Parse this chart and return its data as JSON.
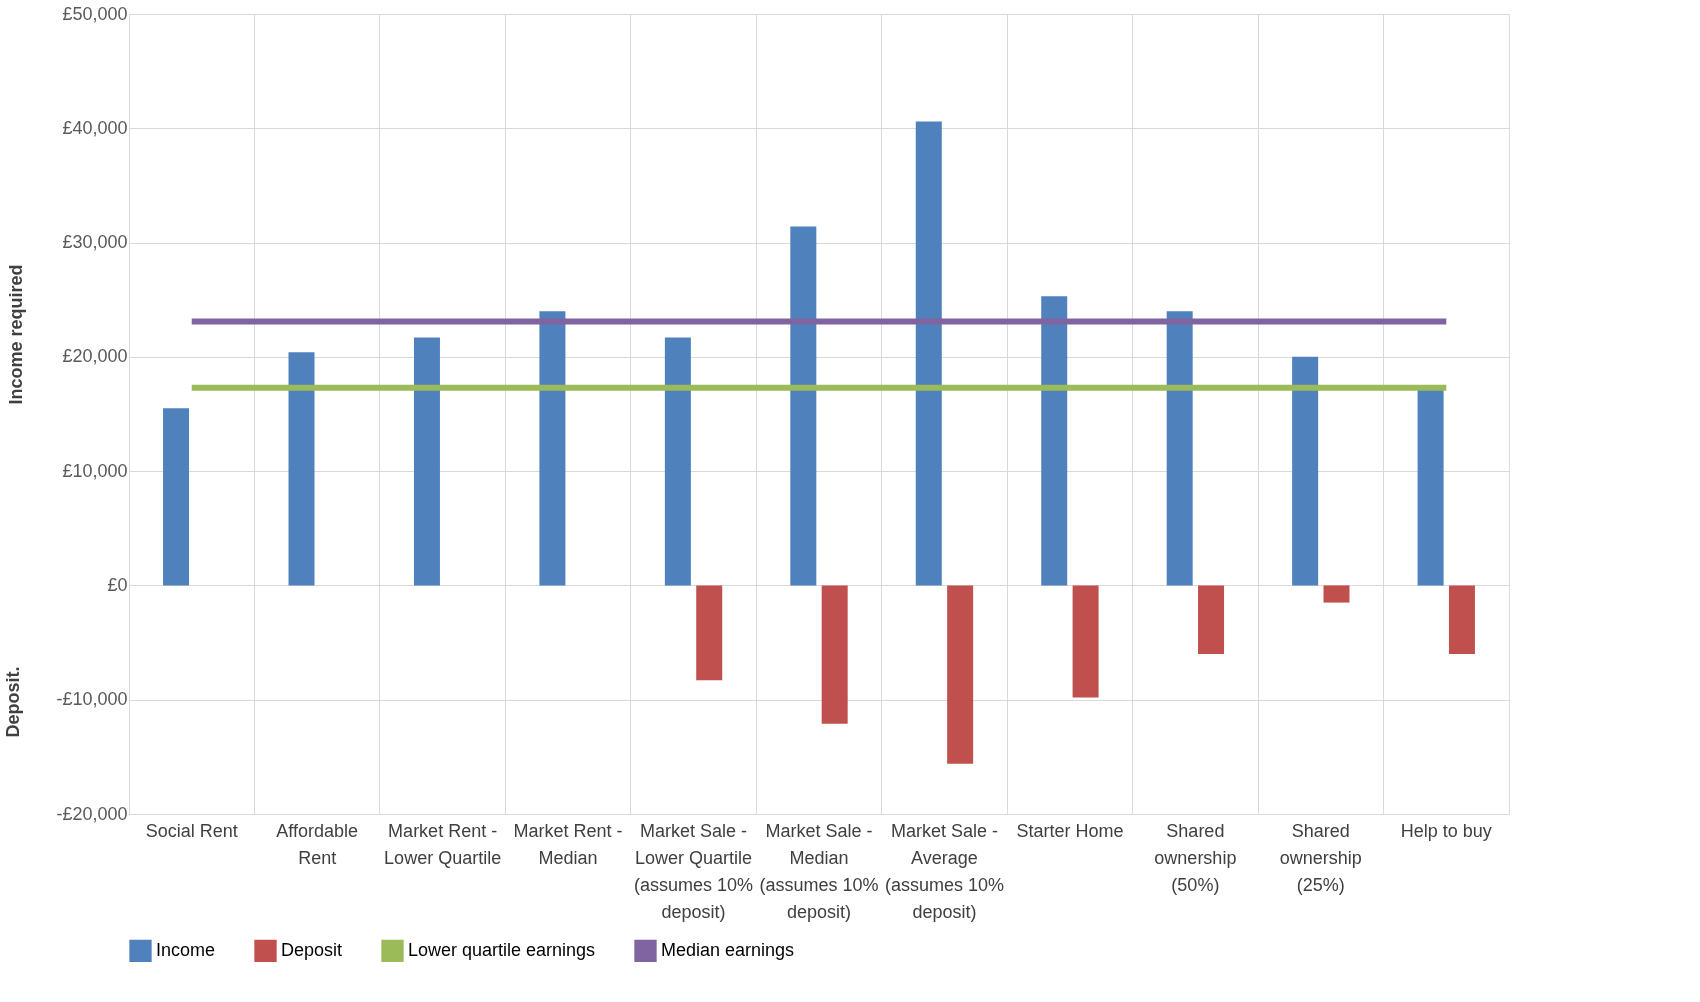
{
  "chart_data": {
    "type": "bar",
    "categories": [
      "Social Rent",
      "Affordable Rent",
      "Market Rent - Lower Quartile",
      "Market Rent - Median",
      "Market Sale - Lower Quartile (assumes 10% deposit)",
      "Market Sale - Median (assumes 10% deposit)",
      "Market Sale - Average (assumes 10% deposit)",
      "Starter Home",
      "Shared ownership (50%)",
      "Shared ownership (25%)",
      "Help to buy"
    ],
    "series": [
      {
        "name": "Income",
        "color": "#4f81bd",
        "values": [
          15500,
          20400,
          21700,
          24000,
          21700,
          31400,
          40600,
          25300,
          24000,
          20000,
          17300
        ]
      },
      {
        "name": "Deposit",
        "color": "#c0504d",
        "values": [
          null,
          null,
          null,
          null,
          -8300,
          -12100,
          -15600,
          -9800,
          -6000,
          -1500,
          -6000
        ]
      },
      {
        "name": "Lower quartile earnings",
        "type": "line",
        "color": "#9bbb59",
        "values": [
          17300,
          17300,
          17300,
          17300,
          17300,
          17300,
          17300,
          17300,
          17300,
          17300,
          17300
        ]
      },
      {
        "name": "Median earnings",
        "type": "line",
        "color": "#8064a2",
        "values": [
          23100,
          23100,
          23100,
          23100,
          23100,
          23100,
          23100,
          23100,
          23100,
          23100,
          23100
        ]
      }
    ],
    "ylabel": "Income required",
    "annotations": [
      "Deposit."
    ],
    "ylim": [
      -20000,
      50000
    ],
    "yticks": [
      {
        "value": -20000,
        "label": "-£20,000"
      },
      {
        "value": -10000,
        "label": "-£10,000"
      },
      {
        "value": 0,
        "label": "£0"
      },
      {
        "value": 10000,
        "label": "£10,000"
      },
      {
        "value": 20000,
        "label": "£20,000"
      },
      {
        "value": 30000,
        "label": "£30,000"
      },
      {
        "value": 40000,
        "label": "£40,000"
      },
      {
        "value": 50000,
        "label": "£50,000"
      }
    ],
    "grid": true,
    "legend": "bottom"
  }
}
